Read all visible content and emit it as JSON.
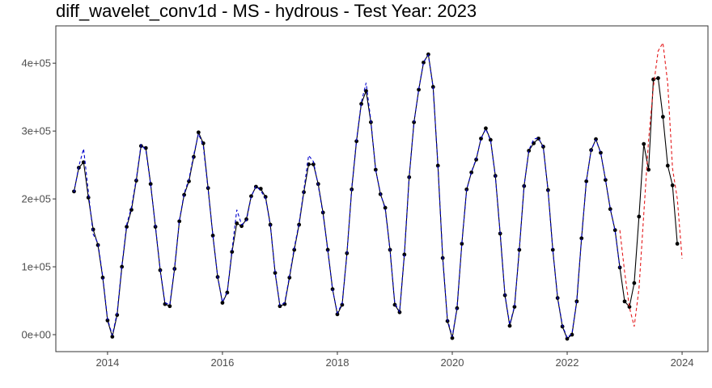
{
  "chart_data": {
    "type": "line",
    "title": "diff_wavelet_conv1d - MS - hydrous - Test Year: 2023",
    "xlabel": "",
    "ylabel": "",
    "xlim": [
      2013.1,
      2024.45
    ],
    "ylim": [
      -25000,
      455000
    ],
    "grid": false,
    "legend": "none",
    "x_ticks": [
      2014,
      2016,
      2018,
      2020,
      2022,
      2024
    ],
    "x_tick_labels": [
      "2014",
      "2016",
      "2018",
      "2020",
      "2022",
      "2024"
    ],
    "y_ticks": [
      0,
      100000,
      200000,
      300000,
      400000
    ],
    "y_tick_labels": [
      "0e+00",
      "1e+05",
      "2e+05",
      "3e+05",
      "4e+05"
    ],
    "start_year": 2013,
    "start_month": 6,
    "series": [
      {
        "color": "#000000",
        "style": "solid-with-points",
        "values": [
          211000,
          246000,
          254000,
          202000,
          155000,
          132000,
          84000,
          21000,
          -3000,
          29000,
          100000,
          159000,
          184000,
          227000,
          278000,
          275000,
          222000,
          159000,
          95000,
          45000,
          42000,
          97000,
          167000,
          206000,
          226000,
          262000,
          298000,
          282000,
          216000,
          146000,
          85000,
          47000,
          62000,
          122000,
          164000,
          160000,
          170000,
          204000,
          218000,
          215000,
          203000,
          162000,
          91000,
          42000,
          45000,
          84000,
          125000,
          162000,
          210000,
          251000,
          251000,
          222000,
          180000,
          125000,
          67000,
          30000,
          44000,
          120000,
          214000,
          285000,
          340000,
          359000,
          313000,
          243000,
          207000,
          187000,
          125000,
          44000,
          33000,
          118000,
          232000,
          313000,
          361000,
          401000,
          413000,
          365000,
          249000,
          113000,
          20000,
          -5000,
          39000,
          134000,
          214000,
          239000,
          258000,
          289000,
          304000,
          287000,
          234000,
          149000,
          58000,
          13000,
          41000,
          125000,
          219000,
          271000,
          282000,
          289000,
          277000,
          213000,
          125000,
          54000,
          12000,
          -6000,
          0,
          49000,
          142000,
          226000,
          272000,
          288000,
          268000,
          228000,
          185000,
          154000,
          99000,
          49000,
          41000,
          76000,
          174000,
          281000,
          243000,
          376000,
          378000,
          321000,
          249000,
          220000,
          134000
        ]
      },
      {
        "color": "#0000cc",
        "style": "dashed",
        "start_index": 0,
        "values": [
          210000,
          248000,
          274000,
          210000,
          148000,
          135000,
          86000,
          23000,
          -1000,
          32000,
          102000,
          162000,
          188000,
          229000,
          280000,
          272000,
          221000,
          160000,
          96000,
          47000,
          44000,
          99000,
          168000,
          208000,
          229000,
          265000,
          296000,
          278000,
          214000,
          147000,
          86000,
          48000,
          63000,
          125000,
          184000,
          162000,
          168000,
          203000,
          219000,
          212000,
          201000,
          161000,
          92000,
          43000,
          47000,
          86000,
          128000,
          164000,
          213000,
          264000,
          255000,
          220000,
          178000,
          124000,
          66000,
          32000,
          46000,
          118000,
          216000,
          287000,
          342000,
          371000,
          315000,
          243000,
          208000,
          185000,
          124000,
          46000,
          34000,
          120000,
          232000,
          312000,
          362000,
          402000,
          412000,
          364000,
          250000,
          114000,
          22000,
          -3000,
          40000,
          135000,
          213000,
          240000,
          259000,
          289000,
          303000,
          286000,
          233000,
          150000,
          59000,
          15000,
          42000,
          126000,
          220000,
          272000,
          288000,
          290000,
          276000,
          212000,
          124000,
          55000,
          14000,
          -5000,
          2000,
          50000,
          143000,
          226000,
          272000,
          287000,
          268000,
          229000,
          186000,
          153000,
          98000
        ]
      },
      {
        "color": "#e41a1c",
        "style": "dashed",
        "start_index": 114,
        "values": [
          154000,
          92000,
          40000,
          12000,
          68000,
          178000,
          287000,
          365000,
          418000,
          430000,
          370000,
          245000,
          200000,
          112000
        ]
      }
    ]
  }
}
